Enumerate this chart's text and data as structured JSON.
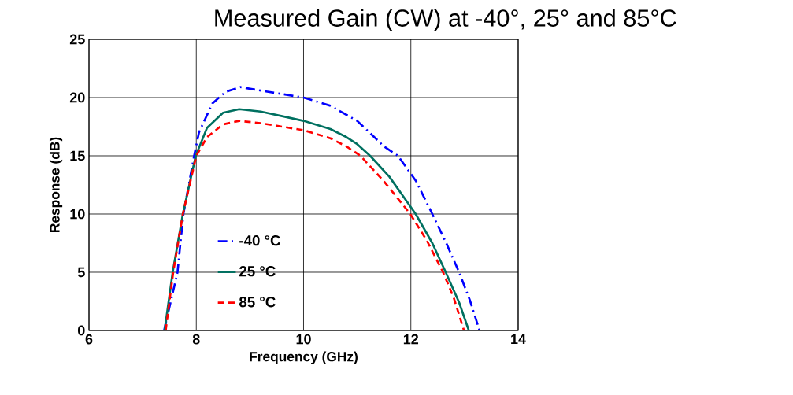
{
  "chart_data": {
    "type": "line",
    "title": "Measured Gain (CW) at -40°, 25° and 85°C",
    "xlabel": "Frequency (GHz)",
    "ylabel": "Response (dB)",
    "xlim": [
      6,
      14
    ],
    "ylim": [
      0,
      25
    ],
    "xticks": [
      6,
      8,
      10,
      12,
      14
    ],
    "yticks": [
      0,
      5,
      10,
      15,
      20,
      25
    ],
    "grid": true,
    "legend": "bottom left",
    "series": [
      {
        "name": "-40 °C",
        "color": "#0000ff",
        "line_style": "dashdot",
        "x": [
          7.4,
          7.65,
          7.76,
          7.96,
          8.05,
          8.3,
          8.55,
          8.82,
          9.2,
          9.6,
          10.0,
          10.5,
          11.0,
          11.5,
          11.76,
          12.1,
          12.4,
          12.65,
          12.9,
          13.1,
          13.28
        ],
        "values": [
          0,
          5,
          10,
          15,
          17,
          19.5,
          20.5,
          20.9,
          20.6,
          20.3,
          20.0,
          19.3,
          18.0,
          15.8,
          15,
          12.8,
          10,
          7.6,
          5,
          2.6,
          0
        ]
      },
      {
        "name": "25 °C",
        "color": "#007060",
        "line_style": "solid",
        "x": [
          7.41,
          7.56,
          7.75,
          7.99,
          8.2,
          8.5,
          8.8,
          9.2,
          9.6,
          10.0,
          10.5,
          10.8,
          11.0,
          11.24,
          11.6,
          12.09,
          12.4,
          12.65,
          12.9,
          13.08
        ],
        "values": [
          0,
          5,
          10,
          15,
          17.4,
          18.7,
          19.0,
          18.8,
          18.4,
          18.0,
          17.3,
          16.6,
          16.0,
          15,
          13.2,
          10,
          7.5,
          5,
          2.4,
          0
        ]
      },
      {
        "name": "85 °C",
        "color": "#ff0000",
        "line_style": "dashed",
        "x": [
          7.43,
          7.57,
          7.75,
          8.0,
          8.2,
          8.5,
          8.8,
          9.2,
          9.6,
          10.0,
          10.5,
          10.8,
          11.06,
          11.5,
          11.99,
          12.3,
          12.6,
          12.8,
          12.99
        ],
        "values": [
          0,
          5,
          10,
          15,
          16.6,
          17.7,
          18.0,
          17.8,
          17.5,
          17.2,
          16.5,
          15.8,
          15,
          12.8,
          10,
          7.7,
          5,
          2.8,
          0
        ]
      }
    ]
  }
}
